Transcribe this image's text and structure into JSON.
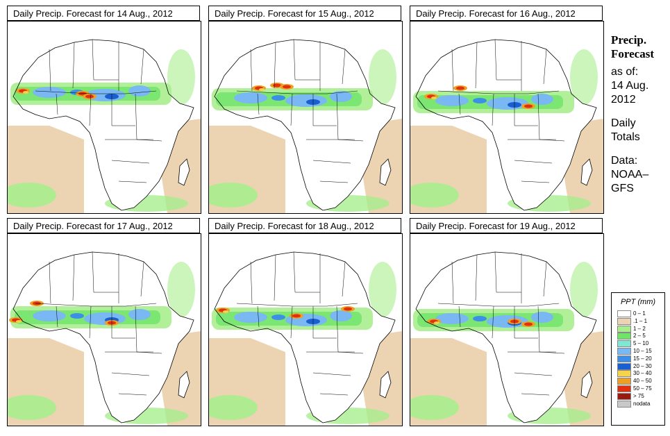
{
  "panels": [
    {
      "title": "Daily Precip. Forecast for  14 Aug., 2012"
    },
    {
      "title": "Daily Precip. Forecast for  15 Aug., 2012"
    },
    {
      "title": "Daily Precip. Forecast for  16 Aug., 2012"
    },
    {
      "title": "Daily Precip. Forecast for  17 Aug., 2012"
    },
    {
      "title": "Daily Precip. Forecast for  18 Aug., 2012"
    },
    {
      "title": "Daily Precip. Forecast for  19 Aug., 2012"
    }
  ],
  "sidebar": {
    "line1": "Precip.",
    "line2": "Forecast",
    "line3": "as of:",
    "line4": "14 Aug.",
    "line5": "2012",
    "line6": "Daily",
    "line7": "Totals",
    "line8": "Data:",
    "line9": "NOAA–",
    "line10": "GFS"
  },
  "legend": {
    "title": "PPT (mm)",
    "items": [
      {
        "label": "0 – 1",
        "color": "#ffffff"
      },
      {
        "label": ".1 – 1",
        "color": "#ecd3b1"
      },
      {
        "label": "1 – 2",
        "color": "#a8ee8e"
      },
      {
        "label": "2 – 5",
        "color": "#6fe468"
      },
      {
        "label": "5 – 10",
        "color": "#7de8d4"
      },
      {
        "label": "10 – 15",
        "color": "#79b8f2"
      },
      {
        "label": "15 – 20",
        "color": "#3c8fe8"
      },
      {
        "label": "20 – 30",
        "color": "#1a5fd0"
      },
      {
        "label": "30 – 40",
        "color": "#f5d34a"
      },
      {
        "label": "40 – 50",
        "color": "#f0a020"
      },
      {
        "label": "50 – 75",
        "color": "#e03010"
      },
      {
        "label": "> 75",
        "color": "#9a1a10"
      },
      {
        "label": "nodata",
        "color": "#c8c8c8"
      }
    ]
  }
}
